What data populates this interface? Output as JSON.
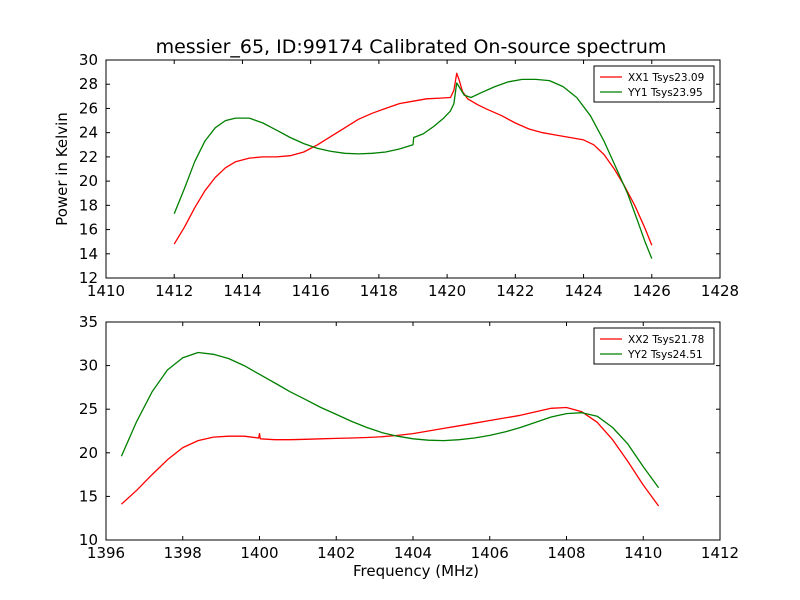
{
  "title": "messier_65, ID:99174 Calibrated On-source spectrum",
  "colors": {
    "xx": "#ff0000",
    "yy": "#008000"
  },
  "chart_data": [
    {
      "type": "line",
      "title": "messier_65, ID:99174 Calibrated On-source spectrum",
      "xlabel": "",
      "ylabel": "Power in Kelvin",
      "xlim": [
        1410,
        1428
      ],
      "ylim": [
        12,
        30
      ],
      "xticks": [
        1410,
        1412,
        1414,
        1416,
        1418,
        1420,
        1422,
        1424,
        1426,
        1428
      ],
      "yticks": [
        12,
        14,
        16,
        18,
        20,
        22,
        24,
        26,
        28,
        30
      ],
      "grid": false,
      "legend": "top-right",
      "series": [
        {
          "name": "XX1 Tsys23.09",
          "color": "#ff0000",
          "points": [
            [
              1412.0,
              14.8
            ],
            [
              1412.3,
              16.2
            ],
            [
              1412.6,
              17.8
            ],
            [
              1412.9,
              19.2
            ],
            [
              1413.2,
              20.3
            ],
            [
              1413.5,
              21.1
            ],
            [
              1413.8,
              21.6
            ],
            [
              1414.2,
              21.9
            ],
            [
              1414.6,
              22.0
            ],
            [
              1415.0,
              22.0
            ],
            [
              1415.4,
              22.1
            ],
            [
              1415.8,
              22.4
            ],
            [
              1416.2,
              23.0
            ],
            [
              1416.6,
              23.7
            ],
            [
              1417.0,
              24.4
            ],
            [
              1417.4,
              25.1
            ],
            [
              1417.8,
              25.6
            ],
            [
              1418.2,
              26.0
            ],
            [
              1418.6,
              26.4
            ],
            [
              1419.0,
              26.6
            ],
            [
              1419.4,
              26.8
            ],
            [
              1419.8,
              26.85
            ],
            [
              1420.1,
              26.9
            ],
            [
              1420.2,
              27.5
            ],
            [
              1420.28,
              28.9
            ],
            [
              1420.35,
              28.4
            ],
            [
              1420.45,
              27.4
            ],
            [
              1420.6,
              26.8
            ],
            [
              1420.9,
              26.3
            ],
            [
              1421.2,
              25.9
            ],
            [
              1421.6,
              25.4
            ],
            [
              1422.0,
              24.8
            ],
            [
              1422.4,
              24.3
            ],
            [
              1422.8,
              24.0
            ],
            [
              1423.2,
              23.8
            ],
            [
              1423.6,
              23.6
            ],
            [
              1424.0,
              23.4
            ],
            [
              1424.3,
              23.0
            ],
            [
              1424.6,
              22.2
            ],
            [
              1424.9,
              21.0
            ],
            [
              1425.2,
              19.6
            ],
            [
              1425.5,
              18.0
            ],
            [
              1425.8,
              16.1
            ],
            [
              1426.0,
              14.7
            ]
          ]
        },
        {
          "name": "YY1 Tsys23.95",
          "color": "#008000",
          "points": [
            [
              1412.0,
              17.3
            ],
            [
              1412.3,
              19.4
            ],
            [
              1412.6,
              21.6
            ],
            [
              1412.9,
              23.3
            ],
            [
              1413.2,
              24.4
            ],
            [
              1413.5,
              25.0
            ],
            [
              1413.8,
              25.2
            ],
            [
              1414.2,
              25.2
            ],
            [
              1414.6,
              24.8
            ],
            [
              1415.0,
              24.2
            ],
            [
              1415.4,
              23.6
            ],
            [
              1415.8,
              23.1
            ],
            [
              1416.2,
              22.7
            ],
            [
              1416.6,
              22.45
            ],
            [
              1417.0,
              22.3
            ],
            [
              1417.4,
              22.25
            ],
            [
              1417.8,
              22.3
            ],
            [
              1418.2,
              22.4
            ],
            [
              1418.6,
              22.65
            ],
            [
              1419.0,
              23.0
            ],
            [
              1419.02,
              23.6
            ],
            [
              1419.3,
              23.9
            ],
            [
              1419.6,
              24.5
            ],
            [
              1419.9,
              25.2
            ],
            [
              1420.1,
              25.8
            ],
            [
              1420.2,
              26.4
            ],
            [
              1420.28,
              28.1
            ],
            [
              1420.35,
              27.8
            ],
            [
              1420.5,
              27.1
            ],
            [
              1420.7,
              26.9
            ],
            [
              1421.0,
              27.3
            ],
            [
              1421.4,
              27.8
            ],
            [
              1421.8,
              28.2
            ],
            [
              1422.2,
              28.4
            ],
            [
              1422.6,
              28.4
            ],
            [
              1423.0,
              28.3
            ],
            [
              1423.4,
              27.8
            ],
            [
              1423.8,
              26.9
            ],
            [
              1424.2,
              25.4
            ],
            [
              1424.6,
              23.3
            ],
            [
              1425.0,
              20.8
            ],
            [
              1425.3,
              18.9
            ],
            [
              1425.6,
              16.6
            ],
            [
              1425.8,
              15.0
            ],
            [
              1426.0,
              13.6
            ]
          ]
        }
      ]
    },
    {
      "type": "line",
      "title": "",
      "xlabel": "Frequency (MHz)",
      "ylabel": "",
      "xlim": [
        1396,
        1412
      ],
      "ylim": [
        10,
        35
      ],
      "xticks": [
        1396,
        1398,
        1400,
        1402,
        1404,
        1406,
        1408,
        1410,
        1412
      ],
      "yticks": [
        10,
        15,
        20,
        25,
        30,
        35
      ],
      "grid": false,
      "legend": "top-right",
      "series": [
        {
          "name": "XX2 Tsys21.78",
          "color": "#ff0000",
          "points": [
            [
              1396.4,
              14.1
            ],
            [
              1396.8,
              15.7
            ],
            [
              1397.2,
              17.5
            ],
            [
              1397.6,
              19.2
            ],
            [
              1398.0,
              20.6
            ],
            [
              1398.4,
              21.4
            ],
            [
              1398.8,
              21.8
            ],
            [
              1399.2,
              21.9
            ],
            [
              1399.6,
              21.9
            ],
            [
              1399.98,
              21.7
            ],
            [
              1400.0,
              22.2
            ],
            [
              1400.02,
              21.6
            ],
            [
              1400.4,
              21.5
            ],
            [
              1400.8,
              21.5
            ],
            [
              1401.2,
              21.55
            ],
            [
              1401.6,
              21.6
            ],
            [
              1402.0,
              21.65
            ],
            [
              1402.4,
              21.7
            ],
            [
              1402.8,
              21.75
            ],
            [
              1403.2,
              21.85
            ],
            [
              1403.6,
              22.0
            ],
            [
              1404.0,
              22.2
            ],
            [
              1404.4,
              22.5
            ],
            [
              1404.8,
              22.8
            ],
            [
              1405.2,
              23.1
            ],
            [
              1405.6,
              23.4
            ],
            [
              1406.0,
              23.7
            ],
            [
              1406.4,
              24.0
            ],
            [
              1406.8,
              24.3
            ],
            [
              1407.2,
              24.7
            ],
            [
              1407.6,
              25.1
            ],
            [
              1408.0,
              25.2
            ],
            [
              1408.4,
              24.7
            ],
            [
              1408.8,
              23.5
            ],
            [
              1409.2,
              21.5
            ],
            [
              1409.6,
              19.0
            ],
            [
              1410.0,
              16.3
            ],
            [
              1410.4,
              13.9
            ]
          ]
        },
        {
          "name": "YY2 Tsys24.51",
          "color": "#008000",
          "points": [
            [
              1396.4,
              19.6
            ],
            [
              1396.8,
              23.6
            ],
            [
              1397.2,
              27.0
            ],
            [
              1397.6,
              29.5
            ],
            [
              1398.0,
              30.9
            ],
            [
              1398.4,
              31.5
            ],
            [
              1398.8,
              31.3
            ],
            [
              1399.2,
              30.8
            ],
            [
              1399.6,
              30.0
            ],
            [
              1400.0,
              29.0
            ],
            [
              1400.4,
              28.0
            ],
            [
              1400.8,
              27.0
            ],
            [
              1401.2,
              26.1
            ],
            [
              1401.6,
              25.2
            ],
            [
              1402.0,
              24.4
            ],
            [
              1402.4,
              23.6
            ],
            [
              1402.8,
              22.9
            ],
            [
              1403.2,
              22.3
            ],
            [
              1403.6,
              21.9
            ],
            [
              1404.0,
              21.6
            ],
            [
              1404.4,
              21.45
            ],
            [
              1404.8,
              21.4
            ],
            [
              1405.2,
              21.5
            ],
            [
              1405.6,
              21.7
            ],
            [
              1406.0,
              22.0
            ],
            [
              1406.4,
              22.4
            ],
            [
              1406.8,
              22.9
            ],
            [
              1407.2,
              23.5
            ],
            [
              1407.6,
              24.1
            ],
            [
              1408.0,
              24.5
            ],
            [
              1408.4,
              24.6
            ],
            [
              1408.8,
              24.2
            ],
            [
              1409.2,
              22.9
            ],
            [
              1409.6,
              21.0
            ],
            [
              1410.0,
              18.4
            ],
            [
              1410.4,
              16.0
            ]
          ]
        }
      ]
    }
  ]
}
